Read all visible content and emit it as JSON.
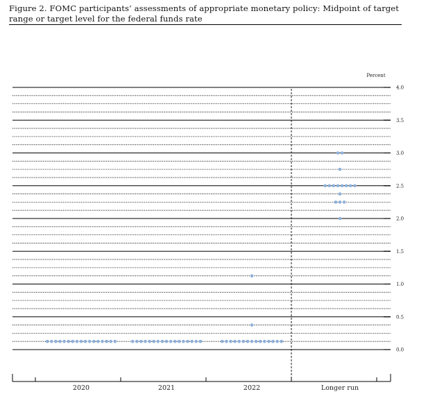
{
  "figure": {
    "title": "Figure 2.  FOMC participants’ assessments of appropriate monetary policy:  Midpoint of target range or target level for the federal funds rate"
  },
  "chart_data": {
    "type": "scatter",
    "units_label": "Percent",
    "ylim": [
      0,
      4
    ],
    "y_ticks": [
      "0.0",
      "0.5",
      "1.0",
      "1.5",
      "2.0",
      "2.5",
      "3.0",
      "3.5",
      "4.0"
    ],
    "categories": [
      "2020",
      "2021",
      "2022",
      "Longer run"
    ],
    "dot_color": "#8fb0d8",
    "dot_counts": [
      {
        "category": "2020",
        "rate": 0.125,
        "count": 17
      },
      {
        "category": "2021",
        "rate": 0.125,
        "count": 17
      },
      {
        "category": "2022",
        "rate": 0.125,
        "count": 15
      },
      {
        "category": "2022",
        "rate": 0.375,
        "count": 1
      },
      {
        "category": "2022",
        "rate": 1.125,
        "count": 1
      },
      {
        "category": "Longer run",
        "rate": 2.0,
        "count": 1
      },
      {
        "category": "Longer run",
        "rate": 2.25,
        "count": 3
      },
      {
        "category": "Longer run",
        "rate": 2.375,
        "count": 1
      },
      {
        "category": "Longer run",
        "rate": 2.5,
        "count": 8
      },
      {
        "category": "Longer run",
        "rate": 2.75,
        "count": 1
      },
      {
        "category": "Longer run",
        "rate": 3.0,
        "count": 2
      }
    ],
    "grid": "major-solid-minor-dotted",
    "longer_run_separator": "dashed"
  }
}
